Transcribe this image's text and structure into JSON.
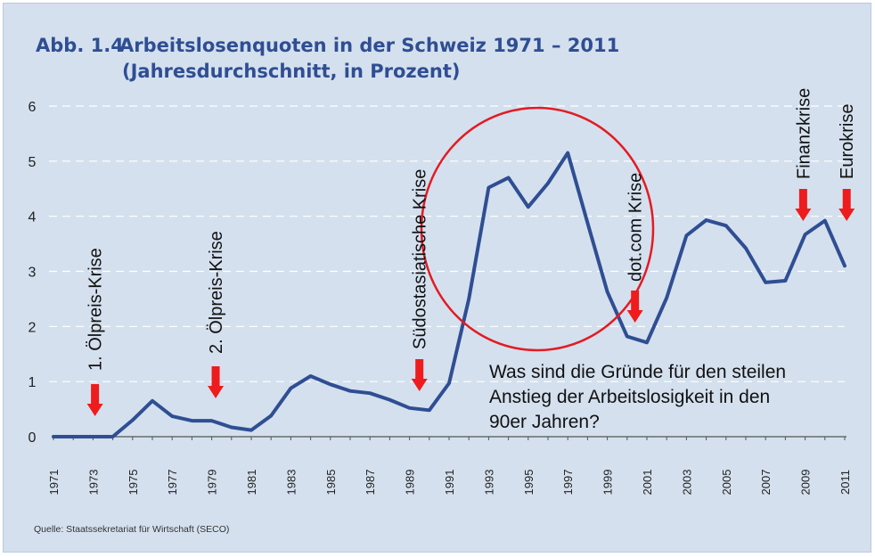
{
  "title": {
    "number": "Abb. 1.4",
    "line1": "Arbeitslosenquoten in der Schweiz 1971 – 2011",
    "line2": "(Jahresdurchschnitt, in Prozent)"
  },
  "source": "Quelle: Staatssekretariat für Wirtschaft (SECO)",
  "question": {
    "line1": "Was sind die Gründe für den steilen",
    "line2": "Anstieg der Arbeitslosigkeit in den",
    "line3": "90er Jahren?"
  },
  "colors": {
    "background": "#d4e0ee",
    "line": "#2f4e93",
    "arrow": "#ee1c1c",
    "circle": "#e31b23",
    "grid": "#ffffff"
  },
  "chart_data": {
    "type": "line",
    "title": "Arbeitslosenquoten in der Schweiz 1971 – 2011",
    "subtitle": "(Jahresdurchschnitt, in Prozent)",
    "xlabel": "",
    "ylabel": "",
    "ylim": [
      0,
      6
    ],
    "xlim": [
      1971,
      2011
    ],
    "grid": "horizontal dashed",
    "y_ticks": [
      "0",
      "1",
      "2",
      "3",
      "4",
      "5",
      "6"
    ],
    "x_ticks": [
      "1971",
      "1973",
      "1975",
      "1977",
      "1979",
      "1981",
      "1983",
      "1985",
      "1987",
      "1989",
      "1991",
      "1993",
      "1995",
      "1997",
      "1999",
      "2001",
      "2003",
      "2005",
      "2007",
      "2009",
      "2011"
    ],
    "x": [
      1971,
      1972,
      1973,
      1974,
      1975,
      1976,
      1977,
      1978,
      1979,
      1980,
      1981,
      1982,
      1983,
      1984,
      1985,
      1986,
      1987,
      1988,
      1989,
      1990,
      1991,
      1992,
      1993,
      1994,
      1995,
      1996,
      1997,
      1998,
      1999,
      2000,
      2001,
      2002,
      2003,
      2004,
      2005,
      2006,
      2007,
      2008,
      2009,
      2010,
      2011
    ],
    "values": [
      0.0,
      0.0,
      0.0,
      0.0,
      0.3,
      0.65,
      0.37,
      0.29,
      0.29,
      0.17,
      0.12,
      0.38,
      0.88,
      1.1,
      0.95,
      0.83,
      0.79,
      0.67,
      0.52,
      0.48,
      0.97,
      2.5,
      4.52,
      4.7,
      4.17,
      4.6,
      5.15,
      3.88,
      2.63,
      1.82,
      1.71,
      2.52,
      3.65,
      3.93,
      3.83,
      3.42,
      2.8,
      2.83,
      3.67,
      3.92,
      3.1
    ],
    "annotations": [
      {
        "label": "1. Ölpreis-Krise",
        "year": 1973.1
      },
      {
        "label": "2. Ölpreis-Krise",
        "year": 1979.2
      },
      {
        "label": "Südostasiatische Krise",
        "year": 1989.5
      },
      {
        "label": "dot.com Krise",
        "year": 2000.4
      },
      {
        "label": "Finanzkrise",
        "year": 2008.9
      },
      {
        "label": "Eurokrise",
        "year": 2011.1
      }
    ],
    "highlight": {
      "type": "circle",
      "around": "1993–1999 peak"
    }
  }
}
